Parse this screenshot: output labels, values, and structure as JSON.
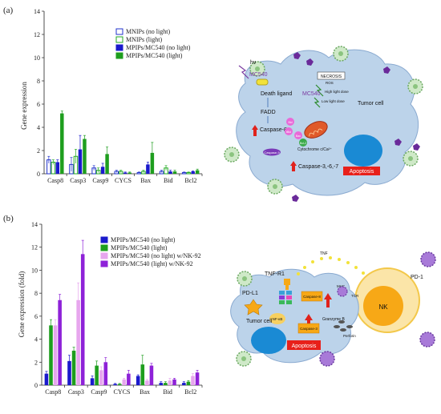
{
  "panels": [
    {
      "label": "(a)",
      "ylabel": "Gene expression",
      "categories": [
        "Casp8",
        "Casp3",
        "Casp9",
        "CYCS",
        "Bax",
        "Bid",
        "Bcl2"
      ],
      "yticks": [
        "0",
        "2",
        "4",
        "6",
        "8",
        "10",
        "12",
        "14"
      ],
      "legend": [
        {
          "name": "MNIPs (no light)",
          "color": "#2233cc",
          "filled": false
        },
        {
          "name": "MNIPs (light)",
          "color": "#22aa22",
          "filled": false
        },
        {
          "name": "MPIPs/MC540 (no light)",
          "color": "#1a1acc",
          "filled": true
        },
        {
          "name": "MPIPs/MC540 (light)",
          "color": "#1e9e1e",
          "filled": true
        }
      ]
    },
    {
      "label": "(b)",
      "ylabel": "Gene expression (fold)",
      "categories": [
        "Casp8",
        "Casp3",
        "Casp9",
        "CYCS",
        "Bax",
        "Bid",
        "Bcl2"
      ],
      "yticks": [
        "0",
        "2",
        "4",
        "6",
        "8",
        "10",
        "12",
        "14"
      ],
      "legend": [
        {
          "name": "MPIPs/MC540 (no light)",
          "color": "#1a1acc",
          "filled": true
        },
        {
          "name": "MPIPs/MC540 (light)",
          "color": "#1e9e1e",
          "filled": true
        },
        {
          "name": "MPIPs/MC540 (no light) w/NK-92",
          "color": "#e7a6ee",
          "filled": true
        },
        {
          "name": "MPIPs/MC540 (light) w/NK-92",
          "color": "#8e22d8",
          "filled": true
        }
      ]
    }
  ],
  "chart_data": [
    {
      "type": "bar",
      "title": "",
      "xlabel": "",
      "ylabel": "Gene expression",
      "ylim": [
        0,
        14
      ],
      "categories": [
        "Casp8",
        "Casp3",
        "Casp9",
        "CYCS",
        "Bax",
        "Bid",
        "Bcl2"
      ],
      "series": [
        {
          "name": "MNIPs (no light)",
          "values": [
            1.2,
            0.8,
            0.5,
            0.2,
            0.1,
            0.2,
            0.1
          ]
        },
        {
          "name": "MNIPs (light)",
          "values": [
            1.0,
            1.5,
            0.3,
            0.2,
            0.2,
            0.5,
            0.1
          ]
        },
        {
          "name": "MPIPs/MC540 (no light)",
          "values": [
            1.0,
            2.1,
            0.6,
            0.1,
            0.8,
            0.2,
            0.2
          ]
        },
        {
          "name": "MPIPs/MC540 (light)",
          "values": [
            5.2,
            3.0,
            1.7,
            0.1,
            1.8,
            0.2,
            0.3
          ]
        }
      ],
      "errors": [
        [
          0.3,
          0.6,
          0.2,
          0.1,
          0.05,
          0.1,
          0.05
        ],
        [
          0.2,
          0.6,
          0.2,
          0.1,
          0.1,
          0.2,
          0.05
        ],
        [
          0.2,
          1.2,
          0.3,
          0.05,
          0.2,
          0.1,
          0.05
        ],
        [
          0.2,
          0.3,
          0.6,
          0.05,
          0.9,
          0.1,
          0.1
        ]
      ]
    },
    {
      "type": "bar",
      "title": "",
      "xlabel": "",
      "ylabel": "Gene expression (fold)",
      "ylim": [
        0,
        14
      ],
      "categories": [
        "Casp8",
        "Casp3",
        "Casp9",
        "CYCS",
        "Bax",
        "Bid",
        "Bcl2"
      ],
      "series": [
        {
          "name": "MPIPs/MC540 (no light)",
          "values": [
            1.0,
            2.1,
            0.6,
            0.1,
            0.8,
            0.2,
            0.2
          ]
        },
        {
          "name": "MPIPs/MC540 (light)",
          "values": [
            5.2,
            3.0,
            1.7,
            0.1,
            1.8,
            0.2,
            0.3
          ]
        },
        {
          "name": "MPIPs/MC540 (no light) w/NK-92",
          "values": [
            5.2,
            7.4,
            1.3,
            0.5,
            0.4,
            0.4,
            0.8
          ]
        },
        {
          "name": "MPIPs/MC540 (light) w/NK-92",
          "values": [
            7.4,
            11.4,
            2.0,
            1.0,
            1.7,
            0.5,
            1.1
          ]
        }
      ],
      "errors": [
        [
          0.2,
          0.5,
          0.2,
          0.05,
          0.1,
          0.1,
          0.1
        ],
        [
          0.5,
          0.3,
          0.4,
          0.05,
          0.8,
          0.1,
          0.1
        ],
        [
          0.5,
          1.5,
          0.3,
          0.1,
          0.1,
          0.2,
          0.2
        ],
        [
          0.5,
          1.2,
          0.4,
          0.3,
          0.2,
          0.1,
          0.2
        ]
      ]
    }
  ],
  "diagram_a": {
    "hv": "hν",
    "mc540_1": "MC540",
    "necrosis": "NECROSIS",
    "ros": "ROS",
    "high_dose": "High light dose",
    "mc540_2": "MC540",
    "low_dose": "Low light dose",
    "death_ligand": "Death ligand",
    "tumor_cell": "Tumor cell",
    "fadd": "FADD",
    "caspase8": "Caspase-8",
    "bid": "Bid",
    "tbid": "tBid",
    "bax": "Bax",
    "bcl2": "Bcl-2",
    "cytc": "Cytochrome c/Ca²⁺",
    "caspase9": "Caspase-9",
    "caspase_367": "Caspase-3,-6,-7",
    "apoptosis": "Apoptosis"
  },
  "diagram_b": {
    "tnf": "TNF",
    "tnfr1": "TNF-R1",
    "pdl1": "PD-L1",
    "mhc": "MHC",
    "tcr": "TCR",
    "pd1": "PD-1",
    "nk": "NK",
    "nfkb": "NF-κB",
    "caspase8": "Caspase-8",
    "granzyme": "Granzyme B",
    "caspase3": "Caspase-3",
    "perforin": "Perforin",
    "tumor_cell": "Tumor cell",
    "apoptosis": "Apoptosis"
  }
}
